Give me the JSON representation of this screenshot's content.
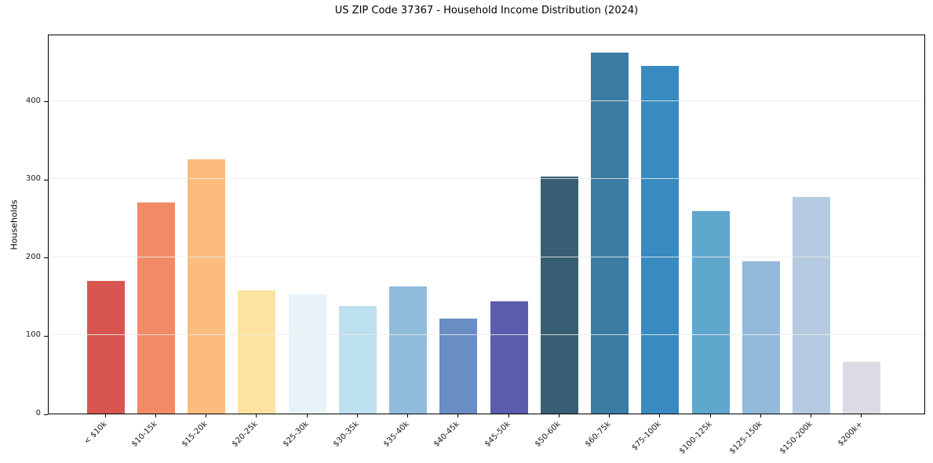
{
  "chart_data": {
    "type": "bar",
    "title": "US ZIP Code 37367 - Household Income Distribution (2024)",
    "xlabel": "",
    "ylabel": "Households",
    "categories": [
      "< $10k",
      "$10-15k",
      "$15-20k",
      "$20-25k",
      "$25-30k",
      "$30-35k",
      "$35-40k",
      "$40-45k",
      "$45-50k",
      "$50-60k",
      "$60-75k",
      "$75-100k",
      "$100-125k",
      "$125-150k",
      "$150-200k",
      "$200k+"
    ],
    "values": [
      170,
      270,
      325,
      158,
      153,
      138,
      163,
      122,
      144,
      303,
      462,
      445,
      259,
      195,
      277,
      66
    ],
    "bar_colors": [
      "#d8564f",
      "#f28a67",
      "#fbbc7d",
      "#fde3a0",
      "#e8f3f8",
      "#bce0ed",
      "#90bcdc",
      "#688ec2",
      "#5a5dad",
      "#375e72",
      "#3a7ca4",
      "#398ac1",
      "#60a7ce",
      "#93b9da",
      "#b5c9e1",
      "#dadbe5"
    ],
    "yticks": [
      0,
      100,
      200,
      300,
      400
    ],
    "ytick_labels": [
      "0",
      "100",
      "200",
      "300",
      "400"
    ],
    "ylim": [
      0,
      486
    ],
    "grid": "horizontal",
    "grid_color": "rgba(235,235,235,0.85)",
    "legend": "none",
    "axis_color": "#000000",
    "text_color": "#1a1a1a",
    "background": "#ffffff"
  }
}
